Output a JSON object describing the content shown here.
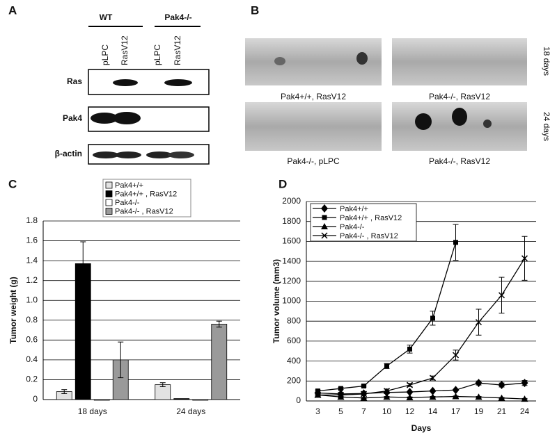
{
  "panel_labels": [
    "A",
    "B",
    "C",
    "D"
  ],
  "blot": {
    "groups": [
      "WT",
      "Pak4-/-"
    ],
    "lanes": [
      "pLPC",
      "RasV12",
      "pLPC",
      "RasV12"
    ],
    "rows": [
      "Ras",
      "Pak4",
      "β-actin"
    ]
  },
  "photos": {
    "captions": [
      "Pak4+/+, RasV12",
      "Pak4-/-, RasV12",
      "Pak4-/-, pLPC",
      "Pak4-/-, RasV12"
    ],
    "times": [
      "18 days",
      "24 days"
    ]
  },
  "chart_data": [
    {
      "type": "bar",
      "ylabel": "Tumor weight (g)",
      "categories": [
        "18 days",
        "24 days"
      ],
      "series": [
        {
          "name": "Pak4+/+",
          "color": "#e2e2e2",
          "values": [
            0.08,
            0.15
          ],
          "errors": [
            0.02,
            0.02
          ]
        },
        {
          "name": "Pak4+/+ , RasV12",
          "color": "#000000",
          "values": [
            1.37,
            0.01
          ],
          "errors": [
            0.22,
            0
          ]
        },
        {
          "name": "Pak4-/-",
          "color": "#ffffff",
          "values": [
            0,
            0
          ],
          "errors": [
            0,
            0
          ]
        },
        {
          "name": "Pak4-/- , RasV12",
          "color": "#9a9a9a",
          "values": [
            0.4,
            0.76
          ],
          "errors": [
            0.18,
            0.03
          ]
        }
      ],
      "ylim": [
        0,
        1.8
      ],
      "yticks": [
        0,
        0.2,
        0.4,
        0.6,
        0.8,
        {
          "value": 1,
          "label": "1.0"
        },
        1.2,
        1.4,
        1.6,
        1.8
      ],
      "grid": true,
      "legend": "top"
    },
    {
      "type": "line",
      "xlabel": "Days",
      "ylabel": "Tumor volume (mm3)",
      "categories": [
        "3",
        "5",
        "7",
        "10",
        "12",
        "14",
        "17",
        "19",
        "21",
        "24"
      ],
      "series": [
        {
          "name": "Pak4+/+",
          "color": "#000000",
          "marker": "diamond",
          "values": [
            80,
            70,
            75,
            85,
            90,
            100,
            110,
            180,
            160,
            180
          ],
          "errors": [
            5,
            5,
            5,
            5,
            5,
            5,
            5,
            20,
            20,
            25
          ]
        },
        {
          "name": "Pak4+/+ , RasV12",
          "color": "#000000",
          "marker": "square",
          "values": [
            100,
            125,
            150,
            350,
            520,
            830,
            1590,
            null,
            null,
            null
          ],
          "errors": [
            10,
            10,
            10,
            25,
            40,
            70,
            180,
            null,
            null,
            null
          ]
        },
        {
          "name": "Pak4-/-",
          "color": "#000000",
          "marker": "triangle",
          "values": [
            60,
            40,
            30,
            40,
            35,
            40,
            45,
            40,
            30,
            20
          ],
          "errors": [
            5,
            5,
            5,
            5,
            5,
            5,
            5,
            5,
            5,
            5
          ]
        },
        {
          "name": "Pak4-/- , RasV12",
          "color": "#000000",
          "marker": "x",
          "values": [
            60,
            60,
            70,
            100,
            160,
            230,
            460,
            790,
            1060,
            1430
          ],
          "errors": [
            10,
            10,
            10,
            20,
            15,
            20,
            50,
            130,
            180,
            220
          ]
        }
      ],
      "ylim": [
        0,
        2000
      ],
      "yticks": [
        0,
        200,
        400,
        600,
        800,
        1000,
        1200,
        1400,
        1600,
        1800,
        2000
      ],
      "grid": true,
      "legend": "top-left"
    }
  ]
}
